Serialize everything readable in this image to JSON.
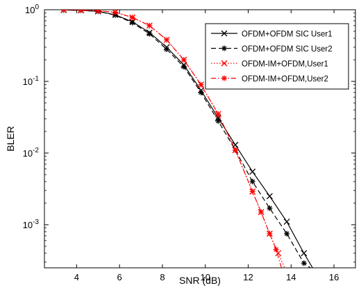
{
  "chart_data": {
    "type": "line",
    "title": "",
    "xlabel": "SNR (dB)",
    "ylabel": "BLER",
    "xlim": [
      2.5,
      17
    ],
    "ylim": [
      0.00025,
      1
    ],
    "y_scale": "log",
    "grid": false,
    "legend_position": "top-right",
    "x_ticks": [
      4,
      6,
      8,
      10,
      12,
      14,
      16
    ],
    "x_tick_labels": [
      "4",
      "6",
      "8",
      "10",
      "12",
      "14",
      "16"
    ],
    "y_ticks": [
      0.001,
      0.01,
      0.1,
      1
    ],
    "y_tick_labels": [
      {
        "base": "10",
        "exp": "-3"
      },
      {
        "base": "10",
        "exp": "-2"
      },
      {
        "base": "10",
        "exp": "-1"
      },
      {
        "base": "10",
        "exp": "0"
      }
    ],
    "series": [
      {
        "name": "OFDM+OFDM SIC User1",
        "color": "#000000",
        "dash": "solid",
        "marker": "x",
        "x": [
          3.4,
          4.2,
          5.0,
          5.8,
          6.6,
          7.4,
          8.2,
          9.0,
          9.8,
          10.6,
          11.4,
          12.2,
          13.0,
          13.8,
          14.6,
          15.0
        ],
        "y": [
          0.99,
          0.98,
          0.95,
          0.85,
          0.68,
          0.48,
          0.3,
          0.17,
          0.075,
          0.031,
          0.013,
          0.0055,
          0.0025,
          0.0011,
          0.0004,
          0.00025
        ]
      },
      {
        "name": "OFDM+OFDM SIC User2",
        "color": "#000000",
        "dash": "dashed",
        "marker": "*",
        "x": [
          3.4,
          4.2,
          5.0,
          5.8,
          6.6,
          7.4,
          8.2,
          9.0,
          9.8,
          10.6,
          11.4,
          12.2,
          13.0,
          13.8,
          14.6,
          14.9
        ],
        "y": [
          0.99,
          0.98,
          0.95,
          0.84,
          0.66,
          0.46,
          0.28,
          0.16,
          0.07,
          0.028,
          0.011,
          0.004,
          0.0017,
          0.00075,
          0.00029,
          0.00025
        ]
      },
      {
        "name": "OFDM-IM+OFDM,User1",
        "color": "#ff0000",
        "dash": "dotted",
        "marker": "x",
        "x": [
          3.4,
          4.2,
          5.0,
          5.8,
          6.6,
          7.4,
          8.2,
          9.0,
          9.8,
          10.6,
          11.4,
          12.2,
          12.6,
          13.0,
          13.4,
          13.7
        ],
        "y": [
          1.0,
          0.99,
          0.97,
          0.92,
          0.78,
          0.6,
          0.38,
          0.2,
          0.09,
          0.035,
          0.011,
          0.0029,
          0.0015,
          0.00075,
          0.0004,
          0.00025
        ]
      },
      {
        "name": "OFDM-IM+OFDM,User2",
        "color": "#ff0000",
        "dash": "dashdot",
        "marker": "*",
        "x": [
          3.4,
          4.2,
          5.0,
          5.8,
          6.6,
          7.4,
          8.2,
          9.0,
          9.8,
          10.6,
          11.4,
          12.2,
          12.6,
          13.0,
          13.3,
          13.55
        ],
        "y": [
          1.0,
          0.99,
          0.97,
          0.92,
          0.78,
          0.6,
          0.38,
          0.2,
          0.09,
          0.035,
          0.011,
          0.0029,
          0.0015,
          0.00075,
          0.00045,
          0.00025
        ]
      }
    ]
  }
}
